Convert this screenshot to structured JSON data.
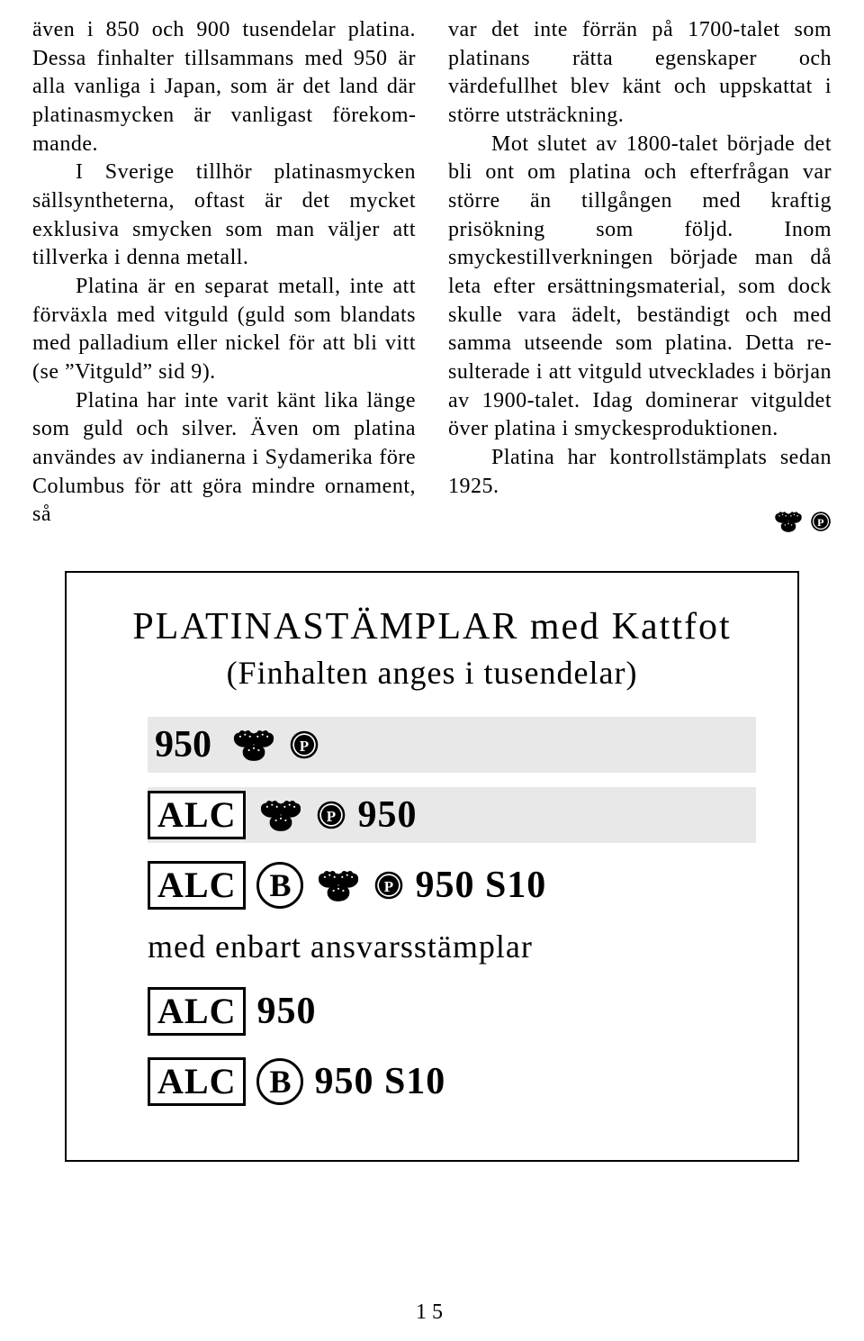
{
  "colors": {
    "text": "#000000",
    "background": "#ffffff",
    "gray_row": "#e8e8e8",
    "border": "#000000"
  },
  "column1": {
    "p1": "även i 850 och 900 tusendelar platina. Dessa finhalter tillsam­mans med 950 är alla vanliga i Japan, som är det land där platina­smycken är vanligast förekom­mande.",
    "p2": "I Sverige tillhör platina­smycken sällsyntheterna, oftast är det mycket exklusiva smycken som man väljer att tillverka i denna metall.",
    "p3": "Platina är en separat metall, inte att förväxla med vitguld (guld som blandats med palladium el­ler nickel för att bli vitt (se ”Vitguld” sid 9).",
    "p4": "Platina har inte varit känt lika länge som guld och silver. Även om platina användes av indian­erna i Sydamerika före Columbus för att göra mindre ornament, så"
  },
  "column2": {
    "p1": "var det inte förrän på 1700-talet som platinans rätta egenskaper och värdefullhet blev känt och uppskattat i större utsträckning.",
    "p2": "Mot slutet av 1800-talet bör­jade det bli ont om platina och efterfrågan var större än tillgången med kraftig prisökning som följd. Inom smyckestillverkningen bör­jade man då leta efter ersättnings­material, som dock skulle vara ädelt, beständigt och med samma utseende som platina. Detta re­sulterade i att vitguld utvecklades i början av 1900-talet. Idag domi­nerar vitguldet över platina i smyck­esproduktionen.",
    "p3": "Platina har kontrollstämplats sedan 1925."
  },
  "stampbox": {
    "title": "PLATINASTÄMPLAR med Kattfot",
    "subtitle": "(Finhalten anges i tusendelar)",
    "rows": [
      {
        "gray": true,
        "alc": false,
        "b": false,
        "kattfot": true,
        "p": true,
        "text_before": "950",
        "text_after": ""
      },
      {
        "gray": true,
        "alc": true,
        "b": false,
        "kattfot": true,
        "p": true,
        "text_before": "",
        "text_after": "950"
      },
      {
        "gray": false,
        "alc": true,
        "b": true,
        "kattfot": true,
        "p": true,
        "text_before": "",
        "text_after": "950 S10"
      }
    ],
    "midtext": "med enbart ansvarsstämplar",
    "rows2": [
      {
        "gray": false,
        "alc": true,
        "b": false,
        "kattfot": false,
        "p": false,
        "text_before": "",
        "text_after": "950"
      },
      {
        "gray": false,
        "alc": true,
        "b": true,
        "kattfot": false,
        "p": false,
        "text_before": "",
        "text_after": "950 S10"
      }
    ],
    "alc_label": "ALC",
    "b_label": "B"
  },
  "kattfot_icon": {
    "small_width": 36,
    "small_height": 26,
    "large_width": 54,
    "large_height": 38,
    "p_small": 24,
    "p_large": 34
  },
  "page_number": "15"
}
